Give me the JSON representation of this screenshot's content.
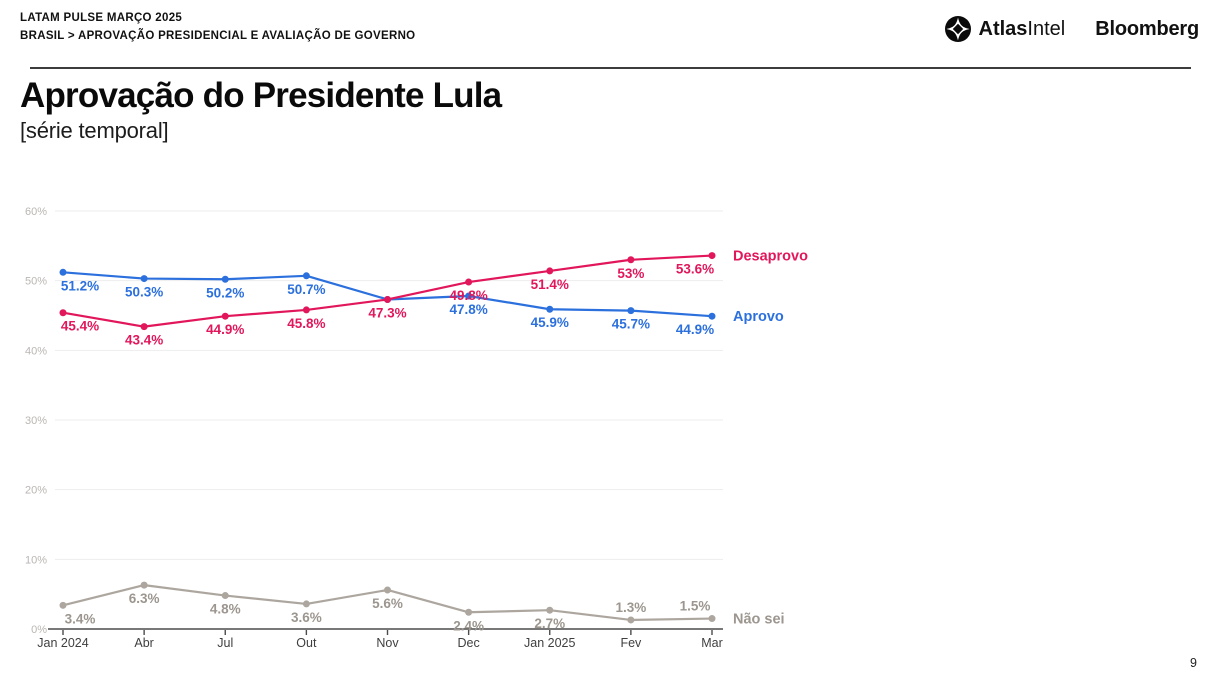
{
  "header": {
    "line1": "LATAM PULSE MARÇO 2025",
    "line2": "BRASIL > APROVAÇÃO PRESIDENCIAL E AVALIAÇÃO DE GOVERNO",
    "brand_atlas_bold": "Atlas",
    "brand_atlas_light": "Intel",
    "brand_bloomberg": "Bloomberg"
  },
  "title": "Aprovação do Presidente Lula",
  "subtitle": "[série temporal]",
  "page_number": "9",
  "chart_data": {
    "type": "line",
    "title": "Aprovação do Presidente Lula [série temporal]",
    "categories": [
      "Jan 2024",
      "Abr",
      "Jul",
      "Out",
      "Nov",
      "Dec",
      "Jan 2025",
      "Fev",
      "Mar"
    ],
    "series": [
      {
        "name": "Aprovo",
        "color": "#2c70dd",
        "values": [
          51.2,
          50.3,
          50.2,
          50.7,
          47.3,
          47.8,
          45.9,
          45.7,
          44.9
        ],
        "labels": [
          "51.2%",
          "50.3%",
          "50.2%",
          "50.7%",
          "",
          "47.8%",
          "45.9%",
          "45.7%",
          "44.9%"
        ],
        "label_side": [
          "below",
          "below",
          "below",
          "below",
          "below",
          "below",
          "below",
          "below",
          "below"
        ]
      },
      {
        "name": "Desaprovo",
        "color": "#e2175b",
        "values": [
          45.4,
          43.4,
          44.9,
          45.8,
          47.3,
          49.8,
          51.4,
          53,
          53.6
        ],
        "labels": [
          "45.4%",
          "43.4%",
          "44.9%",
          "45.8%",
          "47.3%",
          "49.8%",
          "51.4%",
          "53%",
          "53.6%"
        ],
        "label_side": [
          "below",
          "below",
          "below",
          "below",
          "below",
          "below",
          "below",
          "below",
          "below"
        ]
      },
      {
        "name": "Não sei",
        "color": "#aca69f",
        "label_color": "#9c968f",
        "values": [
          3.4,
          6.3,
          4.8,
          3.6,
          5.6,
          2.4,
          2.7,
          1.3,
          1.5
        ],
        "labels": [
          "3.4%",
          "6.3%",
          "4.8%",
          "3.6%",
          "5.6%",
          "2.4%",
          "2.7%",
          "1.3%",
          "1.5%"
        ],
        "label_side": [
          "below",
          "below",
          "below",
          "below",
          "below",
          "below",
          "below",
          "above",
          "above"
        ]
      }
    ],
    "ylim": [
      0,
      60
    ],
    "ytick_step": 10,
    "ytick_suffix": "%",
    "grid": true,
    "legend_position": "right-of-last-point",
    "axis_color": "#4b4b4b",
    "grid_color": "#ededed",
    "ytick_color": "#bab6b2",
    "xtick_color": "#3f3f3f"
  }
}
